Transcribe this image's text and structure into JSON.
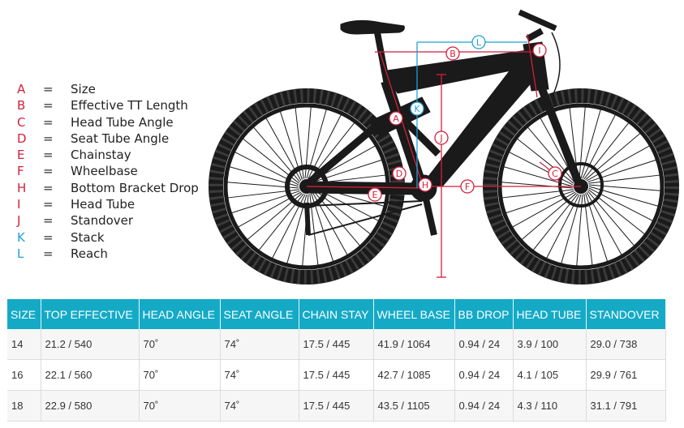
{
  "legend": [
    {
      "letter": "A",
      "label": "Size",
      "color": "red"
    },
    {
      "letter": "B",
      "label": "Effective TT Length",
      "color": "red"
    },
    {
      "letter": "C",
      "label": "Head Tube Angle",
      "color": "red"
    },
    {
      "letter": "D",
      "label": "Seat Tube Angle",
      "color": "red"
    },
    {
      "letter": "E",
      "label": "Chainstay",
      "color": "red"
    },
    {
      "letter": "F",
      "label": "Wheelbase",
      "color": "red"
    },
    {
      "letter": "H",
      "label": "Bottom Bracket Drop",
      "color": "red"
    },
    {
      "letter": "I",
      "label": "Head Tube",
      "color": "red"
    },
    {
      "letter": "J",
      "label": "Standover",
      "color": "red"
    },
    {
      "letter": "K",
      "label": "Stack",
      "color": "blue"
    },
    {
      "letter": "L",
      "label": "Reach",
      "color": "blue"
    }
  ],
  "legend_equals": "=",
  "diagram_markers": {
    "A": "A",
    "B": "B",
    "C": "C",
    "D": "D",
    "E": "E",
    "F": "F",
    "H": "H",
    "I": "I",
    "J": "J",
    "K": "K",
    "L": "L"
  },
  "colors": {
    "red": "#d31f3a",
    "blue": "#1fa0d8",
    "header_bg": "#14aac6",
    "bike": "#1a1a1a"
  },
  "table": {
    "headers": [
      "SIZE",
      "TOP EFFECTIVE",
      "HEAD ANGLE",
      "SEAT ANGLE",
      "CHAIN STAY",
      "WHEEL BASE",
      "BB DROP",
      "HEAD TUBE",
      "STANDOVER"
    ],
    "rows": [
      [
        "14",
        "21.2 / 540",
        "70˚",
        "74˚",
        "17.5 / 445",
        "41.9 / 1064",
        "0.94 / 24",
        "3.9 / 100",
        "29.0 / 738"
      ],
      [
        "16",
        "22.1 / 560",
        "70˚",
        "74˚",
        "17.5 / 445",
        "42.7 / 1085",
        "0.94 / 24",
        "4.1 / 105",
        "29.9 / 761"
      ],
      [
        "18",
        "22.9 / 580",
        "70˚",
        "74˚",
        "17.5 / 445",
        "43.5 / 1105",
        "0.94 / 24",
        "4.3 / 110",
        "31.1 / 791"
      ]
    ]
  }
}
